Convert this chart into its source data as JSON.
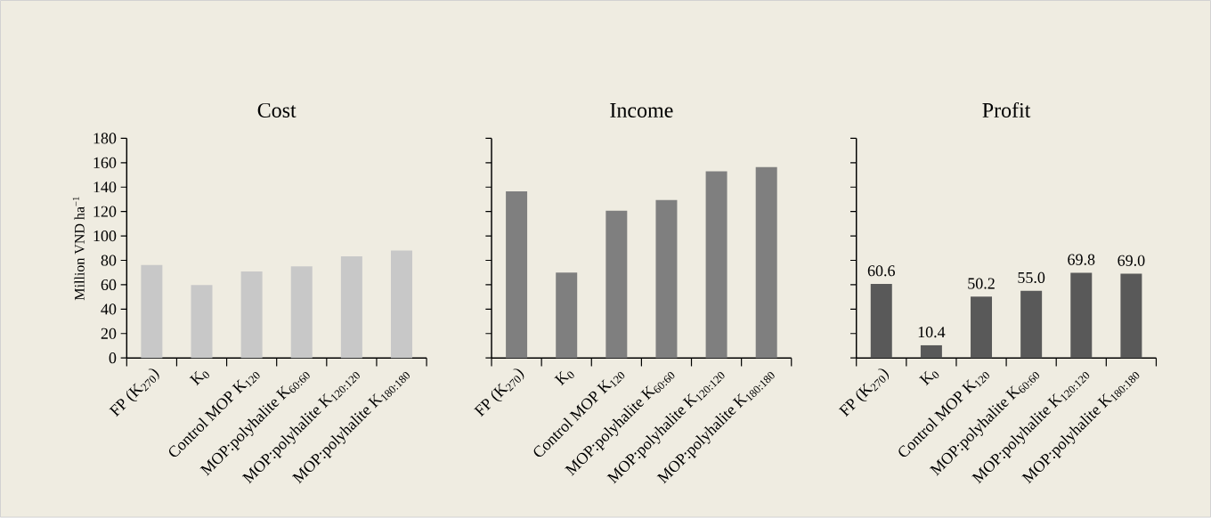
{
  "chart_data": [
    {
      "type": "bar",
      "title": "Cost",
      "ylabel": "Million VND ha$^{−1}$",
      "categories": [
        "FP (K$_{270}$)",
        "K$_{0}$",
        "Control MOP K$_{120}$",
        "MOP:polyhalite K$_{60:60}$",
        "MOP:polyhalite K$_{120:120}$",
        "MOP:polyhalite K$_{180:180}$"
      ],
      "values": [
        76.2,
        59.8,
        70.9,
        75.0,
        83.2,
        88.0
      ],
      "color": "#c8c8c8",
      "ylim": [
        0,
        180
      ],
      "yticks": [
        0,
        20,
        40,
        60,
        80,
        100,
        120,
        140,
        160,
        180
      ]
    },
    {
      "type": "bar",
      "title": "Income",
      "categories": [
        "FP (K$_{270}$)",
        "K$_{0}$",
        "Control MOP K$_{120}$",
        "MOP:polyhalite K$_{60:60}$",
        "MOP:polyhalite K$_{120:120}$",
        "MOP:polyhalite K$_{180:180}$"
      ],
      "values": [
        136.6,
        70.0,
        120.7,
        129.5,
        153.0,
        156.4
      ],
      "color": "#7f7f7f",
      "ylim": [
        0,
        180
      ],
      "yticks": [
        0,
        20,
        40,
        60,
        80,
        100,
        120,
        140,
        160,
        180
      ],
      "tick_labels": "x"
    },
    {
      "type": "bar",
      "title": "Profit",
      "categories": [
        "FP (K$_{270}$)",
        "K$_{0}$",
        "Control MOP K$_{120}$",
        "MOP:polyhalite K$_{60:60}$",
        "MOP:polyhalite K$_{120:120}$",
        "MOP:polyhalite K$_{180:180}$"
      ],
      "values": [
        60.6,
        10.4,
        50.2,
        55.0,
        69.8,
        69.0
      ],
      "value_labels": [
        "60.6",
        "10.4",
        "50.2",
        "55.0",
        "69.8",
        "69.0"
      ],
      "color": "#595959",
      "ylim": [
        0,
        180
      ],
      "yticks": [
        0,
        20,
        40,
        60,
        80,
        100,
        120,
        140,
        160,
        180
      ],
      "tick_labels": "x"
    }
  ]
}
